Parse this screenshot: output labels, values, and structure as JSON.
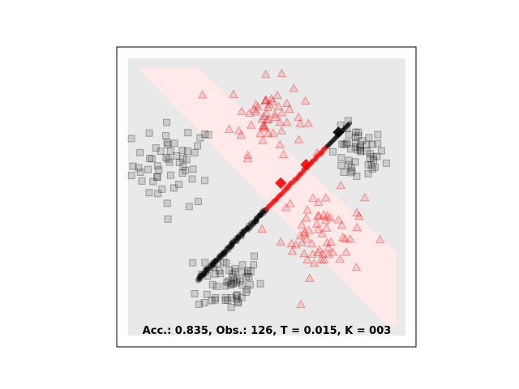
{
  "chart_data": {
    "type": "scatter",
    "title": "",
    "xlabel": "",
    "ylabel": "",
    "xlim": [
      -3,
      3
    ],
    "ylim": [
      -3,
      3
    ],
    "grid": false,
    "axis_ticks": false,
    "annotation": "Acc.: 0.835, Obs.: 126, T = 0.015, K = 003",
    "colors": {
      "class_a": "#000000",
      "class_b": "#ff0000",
      "background_a": "#e9e9e9",
      "background_b": "#ffe9e9",
      "frame": "#000000"
    },
    "decision_band": {
      "description_points_top": [
        [
          -2.8,
          2.8
        ],
        [
          -1.5,
          2.8
        ],
        [
          2.8,
          -1.2
        ],
        [
          2.8,
          -2.8
        ]
      ],
      "description_points_bottom": [
        [
          -2.8,
          2.8
        ],
        [
          2.8,
          -2.8
        ]
      ]
    },
    "series": [
      {
        "class": "a",
        "marker": "square",
        "clusters": [
          {
            "center": [
              -2.0,
              0.7
            ],
            "spread": 0.45,
            "count": 55
          },
          {
            "center": [
              1.95,
              0.9
            ],
            "spread": 0.3,
            "count": 50
          },
          {
            "center": [
              -0.8,
              -1.8
            ],
            "spread": 0.35,
            "count": 60
          }
        ]
      },
      {
        "class": "b",
        "marker": "triangle",
        "clusters": [
          {
            "center": [
              0.0,
              1.75
            ],
            "spread": 0.4,
            "count": 55
          },
          {
            "center": [
              1.2,
              -0.8
            ],
            "spread": 0.45,
            "count": 60
          }
        ]
      }
    ],
    "trajectory": {
      "start": [
        -1.5,
        -1.8
      ],
      "end": [
        1.8,
        1.6
      ],
      "red_segment_start_t": 0.45,
      "red_segment_end_t": 0.85,
      "highlight_points": [
        [
          0.85,
          0.7
        ],
        [
          1.55,
          1.4
        ],
        [
          0.3,
          0.3
        ]
      ]
    }
  }
}
